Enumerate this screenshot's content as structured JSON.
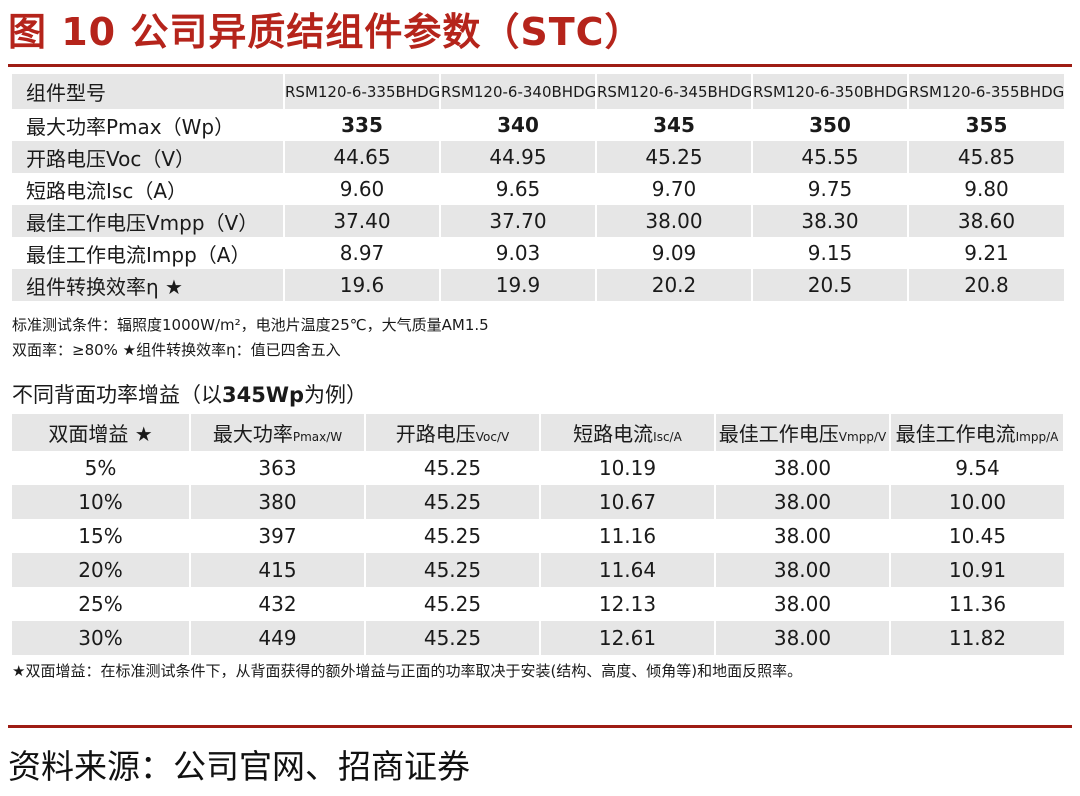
{
  "figure": {
    "title": "图 10  公司异质结组件参数（STC）"
  },
  "table1": {
    "header_label": "组件型号",
    "models": [
      "RSM120-6-335BHDG",
      "RSM120-6-340BHDG",
      "RSM120-6-345BHDG",
      "RSM120-6-350BHDG",
      "RSM120-6-355BHDG"
    ],
    "rows": [
      {
        "label": "最大功率Pmax（Wp）",
        "values": [
          "335",
          "340",
          "345",
          "350",
          "355"
        ]
      },
      {
        "label": "开路电压Voc（V）",
        "values": [
          "44.65",
          "44.95",
          "45.25",
          "45.55",
          "45.85"
        ]
      },
      {
        "label": "短路电流Isc（A）",
        "values": [
          "9.60",
          "9.65",
          "9.70",
          "9.75",
          "9.80"
        ]
      },
      {
        "label": "最佳工作电压Vmpp（V）",
        "values": [
          "37.40",
          "37.70",
          "38.00",
          "38.30",
          "38.60"
        ]
      },
      {
        "label": "最佳工作电流Impp（A）",
        "values": [
          "8.97",
          "9.03",
          "9.09",
          "9.15",
          "9.21"
        ]
      },
      {
        "label": "组件转换效率η  ★",
        "values": [
          "19.6",
          "19.9",
          "20.2",
          "20.5",
          "20.8"
        ]
      }
    ]
  },
  "notes": {
    "line1": "标准测试条件：辐照度1000W/m²，电池片温度25℃，大气质量AM1.5",
    "line2": "双面率：≥80%     ★组件转换效率η：值已四舍五入"
  },
  "subtitle": {
    "prefix": "不同背面功率增益（以",
    "bold": "345Wp",
    "suffix": "为例）"
  },
  "table2": {
    "headers": [
      {
        "main": "双面增益 ★",
        "unit": ""
      },
      {
        "main": "最大功率",
        "unit": "Pmax/W"
      },
      {
        "main": "开路电压",
        "unit": "Voc/V"
      },
      {
        "main": "短路电流",
        "unit": "Isc/A"
      },
      {
        "main": "最佳工作电压",
        "unit": "Vmpp/V"
      },
      {
        "main": "最佳工作电流",
        "unit": "Impp/A"
      }
    ],
    "rows": [
      [
        "5%",
        "363",
        "45.25",
        "10.19",
        "38.00",
        "9.54"
      ],
      [
        "10%",
        "380",
        "45.25",
        "10.67",
        "38.00",
        "10.00"
      ],
      [
        "15%",
        "397",
        "45.25",
        "11.16",
        "38.00",
        "10.45"
      ],
      [
        "20%",
        "415",
        "45.25",
        "11.64",
        "38.00",
        "10.91"
      ],
      [
        "25%",
        "432",
        "45.25",
        "12.13",
        "38.00",
        "11.36"
      ],
      [
        "30%",
        "449",
        "45.25",
        "12.61",
        "38.00",
        "11.82"
      ]
    ]
  },
  "footnote": "★双面增益：在标准测试条件下，从背面获得的额外增益与正面的功率取决于安装(结构、高度、倾角等)和地面反照率。",
  "source": "资料来源：公司官网、招商证券"
}
